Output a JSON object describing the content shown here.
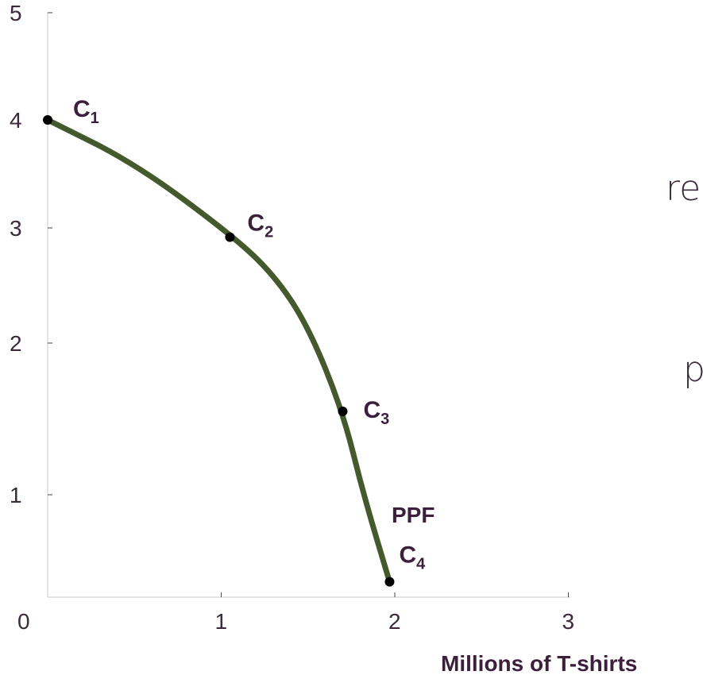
{
  "chart_data": {
    "type": "line",
    "title": "",
    "xlabel": "Millions of T-shirts",
    "ylabel": "",
    "xlim": [
      0,
      3
    ],
    "x_tick_labels": [
      "0",
      "1",
      "2",
      "3"
    ],
    "x_ticks": [
      0,
      1,
      2,
      3
    ],
    "y_tick_labels": [
      "1",
      "2",
      "3",
      "4",
      "5"
    ],
    "y_ticks": [
      1,
      2,
      3,
      4,
      5
    ],
    "curve_label": "PPF",
    "series": [
      {
        "name": "PPF",
        "color": "#455a2c",
        "points": [
          {
            "x": 0.0,
            "y": 4.0
          },
          {
            "x": 0.5,
            "y": 3.6
          },
          {
            "x": 1.05,
            "y": 2.95
          },
          {
            "x": 1.3,
            "y": 2.6
          },
          {
            "x": 1.5,
            "y": 2.15
          },
          {
            "x": 1.7,
            "y": 1.55
          },
          {
            "x": 1.82,
            "y": 1.0
          },
          {
            "x": 1.97,
            "y": 0.15
          }
        ]
      }
    ],
    "points": [
      {
        "label": "C",
        "sub": "1",
        "x": 0.0,
        "y": 4.0
      },
      {
        "label": "C",
        "sub": "2",
        "x": 1.05,
        "y": 2.92
      },
      {
        "label": "C",
        "sub": "3",
        "x": 1.7,
        "y": 1.55
      },
      {
        "label": "C",
        "sub": "4",
        "x": 1.97,
        "y": 0.15
      }
    ]
  },
  "side_text": {
    "line1": "re",
    "line2": "p"
  }
}
